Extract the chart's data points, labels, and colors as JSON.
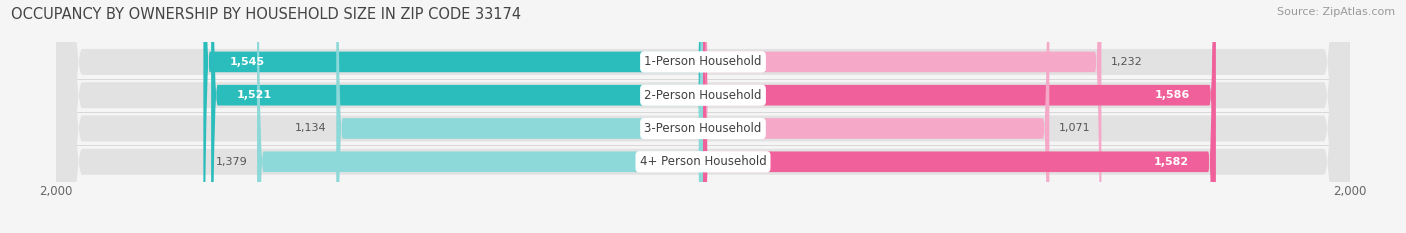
{
  "title": "OCCUPANCY BY OWNERSHIP BY HOUSEHOLD SIZE IN ZIP CODE 33174",
  "source": "Source: ZipAtlas.com",
  "categories": [
    "1-Person Household",
    "2-Person Household",
    "3-Person Household",
    "4+ Person Household"
  ],
  "owner_values": [
    1545,
    1521,
    1134,
    1379
  ],
  "renter_values": [
    1232,
    1586,
    1071,
    1582
  ],
  "owner_color_full": "#2bbcbc",
  "owner_color_light": "#8dd8d8",
  "renter_color_full": "#f0609a",
  "renter_color_light": "#f5a8c8",
  "row_bg_color": "#e8e8e8",
  "axis_max": 2000,
  "title_fontsize": 10.5,
  "source_fontsize": 8,
  "label_fontsize": 8,
  "category_fontsize": 8.5,
  "bar_height": 0.62,
  "background_color": "#f5f5f5",
  "owner_thresh": 1400,
  "renter_thresh": 1400
}
